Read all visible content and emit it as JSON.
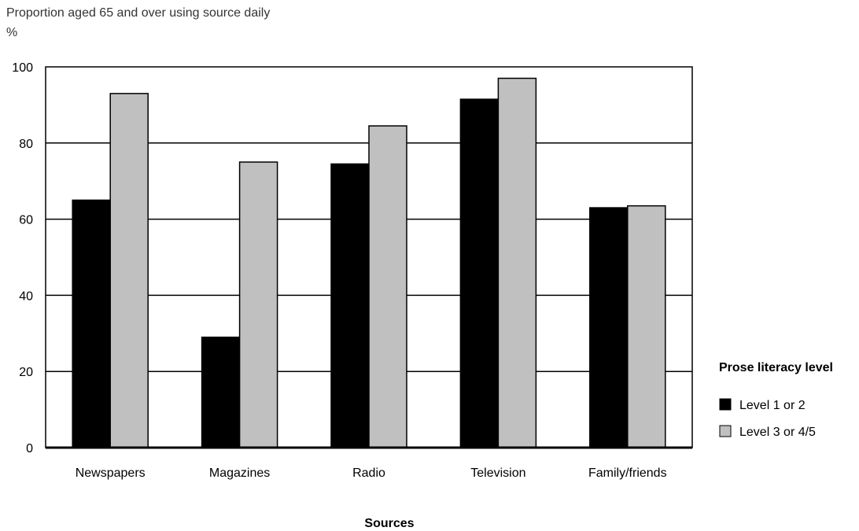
{
  "chart_data": {
    "type": "bar",
    "title": "Proportion aged 65 and over using source daily",
    "ylabel": "%",
    "xlabel": "Sources",
    "categories": [
      "Newspapers",
      "Magazines",
      "Radio",
      "Television",
      "Family/friends"
    ],
    "series": [
      {
        "name": "Level 1 or 2",
        "values": [
          65,
          29,
          74.5,
          91.5,
          63
        ],
        "color": "#000000"
      },
      {
        "name": "Level 3 or 4/5",
        "values": [
          93,
          75,
          84.5,
          97,
          63.5
        ],
        "color": "#c0c0c0"
      }
    ],
    "ylim": [
      0,
      100
    ],
    "yticks": [
      0,
      20,
      40,
      60,
      80,
      100
    ],
    "grid": true,
    "legend": {
      "title": "Prose literacy level",
      "position": "right"
    }
  }
}
